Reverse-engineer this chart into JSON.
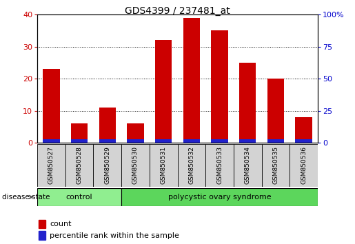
{
  "title": "GDS4399 / 237481_at",
  "samples": [
    "GSM850527",
    "GSM850528",
    "GSM850529",
    "GSM850530",
    "GSM850531",
    "GSM850532",
    "GSM850533",
    "GSM850534",
    "GSM850535",
    "GSM850536"
  ],
  "count_values": [
    23,
    6,
    11,
    6,
    32,
    39,
    35,
    25,
    20,
    8
  ],
  "percentile_values": [
    5.0,
    3.0,
    4.2,
    1.0,
    10.5,
    10.0,
    10.0,
    8.0,
    6.5,
    2.0
  ],
  "ylim_left": [
    0,
    40
  ],
  "ylim_right": [
    0,
    100
  ],
  "yticks_left": [
    0,
    10,
    20,
    30,
    40
  ],
  "yticks_right": [
    0,
    25,
    50,
    75,
    100
  ],
  "bar_width": 0.6,
  "count_color": "#cc0000",
  "percentile_color": "#2222cc",
  "control_color": "#90ee90",
  "pcos_color": "#5cd65c",
  "control_label": "control",
  "pcos_label": "polycystic ovary syndrome",
  "disease_label": "disease state",
  "n_control": 3,
  "legend_count": "count",
  "legend_percentile": "percentile rank within the sample",
  "title_fontsize": 10,
  "axis_label_color_left": "#cc0000",
  "axis_label_color_right": "#0000cc",
  "sample_box_color": "#d3d3d3",
  "blue_bar_height": 1.0
}
